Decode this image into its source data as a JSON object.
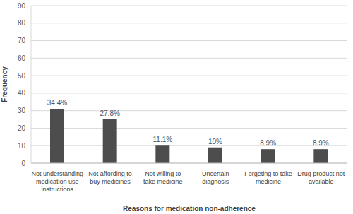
{
  "chart_data": {
    "type": "bar",
    "x_label": "Reasons for medication non-adherence",
    "y_label": "Frequency",
    "categories": [
      "Not understanding medication use instructions",
      "Not affording to buy medicines",
      "Not willing to take medicine",
      "Uncertain diagnosis",
      "Forgeting to take medicine",
      "Drug product not available"
    ],
    "values": [
      31,
      25,
      10,
      9,
      8,
      8
    ],
    "percentage_labels": [
      "34.4%",
      "27.8%",
      "11.1%",
      "10%",
      "8.9%",
      "8.9%"
    ],
    "color": "#4d4d4d",
    "ylim": [
      0,
      90
    ],
    "yticks": [
      0,
      10,
      20,
      30,
      40,
      50,
      60,
      70,
      80,
      90
    ],
    "grid": true
  }
}
